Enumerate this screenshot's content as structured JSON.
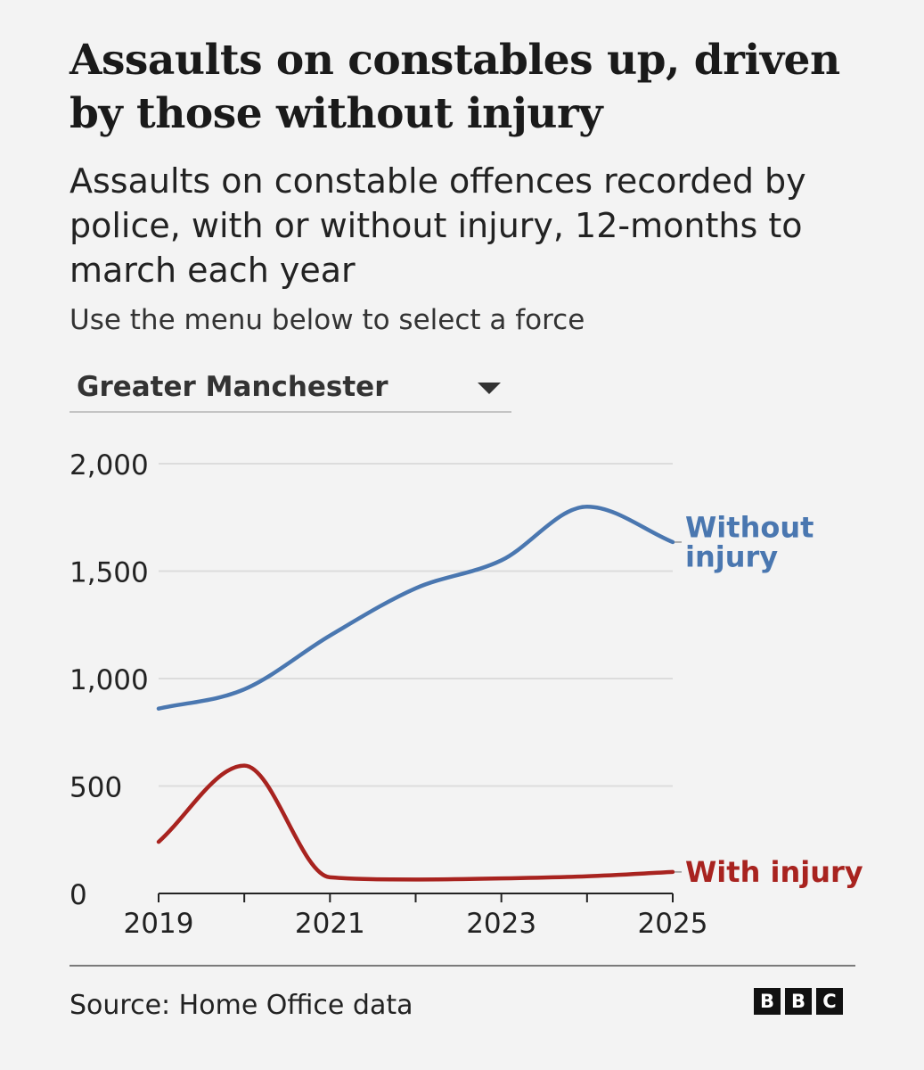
{
  "header": {
    "title": "Assaults on constables up, driven by those without injury",
    "subtitle": "Assaults on constable offences recorded by police, with or without injury, 12-months to march each year",
    "instruction": "Use the menu below to select a force"
  },
  "force_selector": {
    "selected": "Greater Manchester"
  },
  "chart_data": {
    "type": "line",
    "title": "",
    "xlabel": "",
    "ylabel": "",
    "x": [
      2019,
      2020,
      2021,
      2022,
      2023,
      2024,
      2025
    ],
    "x_tick_labels": [
      "2019",
      "2021",
      "2023",
      "2025"
    ],
    "x_tick_values": [
      2019,
      2021,
      2023,
      2025
    ],
    "x_minor_ticks": [
      2019,
      2020,
      2021,
      2022,
      2023,
      2024,
      2025
    ],
    "xlim": [
      2019,
      2025
    ],
    "y_ticks": [
      {
        "value": 0,
        "label": "0"
      },
      {
        "value": 500,
        "label": "500"
      },
      {
        "value": 1000,
        "label": "1,000"
      },
      {
        "value": 1500,
        "label": "1,500"
      },
      {
        "value": 2000,
        "label": "2,000"
      }
    ],
    "ylim": [
      0,
      2000
    ],
    "grid": true,
    "series": [
      {
        "name": "Without injury",
        "label_lines": [
          "Without",
          "injury"
        ],
        "color": "#4a77b0",
        "values": [
          860,
          950,
          1200,
          1420,
          1550,
          1800,
          1635
        ]
      },
      {
        "name": "With injury",
        "label_lines": [
          "With injury"
        ],
        "color": "#a8231f",
        "values": [
          240,
          595,
          75,
          65,
          70,
          80,
          100
        ]
      }
    ]
  },
  "footer": {
    "source": "Source: Home Office data",
    "logo": [
      "B",
      "B",
      "C"
    ]
  }
}
